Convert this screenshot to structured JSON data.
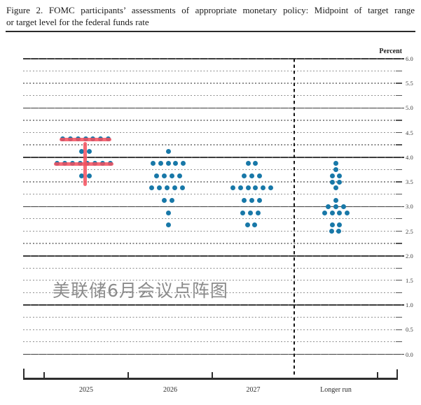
{
  "title": {
    "line1": "Figure 2.  FOMC participants’ assessments of appropriate monetary policy:  Midpoint of target range",
    "line2": "or target level for the federal funds rate"
  },
  "chart_data": {
    "type": "scatter",
    "title": "FOMC participants’ assessments of appropriate monetary policy: Midpoint of target range or target level for the federal funds rate",
    "ylabel": "Percent",
    "ylim": [
      0.0,
      6.0
    ],
    "grid_step": 0.25,
    "label_step": 0.5,
    "grid": "on",
    "y_tick_labels": [
      "6.0",
      "5.5",
      "5.0",
      "4.5",
      "4.0",
      "3.5",
      "3.0",
      "2.5",
      "2.0",
      "1.5",
      "1.0",
      "0.5",
      "0.0"
    ],
    "categories": [
      "2025",
      "2026",
      "2027",
      "Longer run"
    ],
    "dot_color": "#1878a8",
    "series": [
      {
        "category": "2025",
        "dots": [
          {
            "rate": 4.375,
            "count": 7
          },
          {
            "rate": 4.125,
            "count": 2
          },
          {
            "rate": 3.875,
            "count": 8,
            "dx": -2.5
          },
          {
            "rate": 3.625,
            "count": 2
          }
        ]
      },
      {
        "category": "2026",
        "dots": [
          {
            "rate": 4.125,
            "count": 1
          },
          {
            "rate": 3.875,
            "count": 5
          },
          {
            "rate": 3.625,
            "count": 4
          },
          {
            "rate": 3.375,
            "count": 5,
            "dx": -1.5
          },
          {
            "rate": 3.125,
            "count": 2
          },
          {
            "rate": 2.875,
            "count": 1
          },
          {
            "rate": 2.625,
            "count": 1
          }
        ]
      },
      {
        "category": "2027",
        "dots": [
          {
            "rate": 3.875,
            "count": 2
          },
          {
            "rate": 3.625,
            "count": 3
          },
          {
            "rate": 3.375,
            "count": 6
          },
          {
            "rate": 3.125,
            "count": 3
          },
          {
            "rate": 2.875,
            "count": 3,
            "dx": -2
          },
          {
            "rate": 2.625,
            "count": 2,
            "dx": -1
          }
        ]
      },
      {
        "category": "Longer run",
        "dots": [
          {
            "rate": 3.875,
            "count": 1
          },
          {
            "rate": 3.75,
            "count": 1
          },
          {
            "rate": 3.625,
            "count": 2
          },
          {
            "rate": 3.5,
            "count": 2
          },
          {
            "rate": 3.375,
            "count": 1
          },
          {
            "rate": 3.125,
            "count": 1
          },
          {
            "rate": 3.0,
            "count": 3
          },
          {
            "rate": 2.875,
            "count": 4
          },
          {
            "rate": 2.625,
            "count": 2
          },
          {
            "rate": 2.5,
            "count": 2,
            "dx": -1
          }
        ]
      }
    ],
    "annotations": {
      "color": "#f4505e",
      "strokes": [
        {
          "type": "row-strike",
          "category": "2025",
          "rate": 4.375
        },
        {
          "type": "row-strike",
          "category": "2025",
          "rate": 3.875
        },
        {
          "type": "vstroke",
          "category": "2025",
          "rate_from": 4.31,
          "rate_to": 3.41,
          "x_offset": -1
        }
      ]
    },
    "watermark": {
      "text": "美联储6月会议点阵图",
      "color": "#8b8b8b"
    }
  }
}
